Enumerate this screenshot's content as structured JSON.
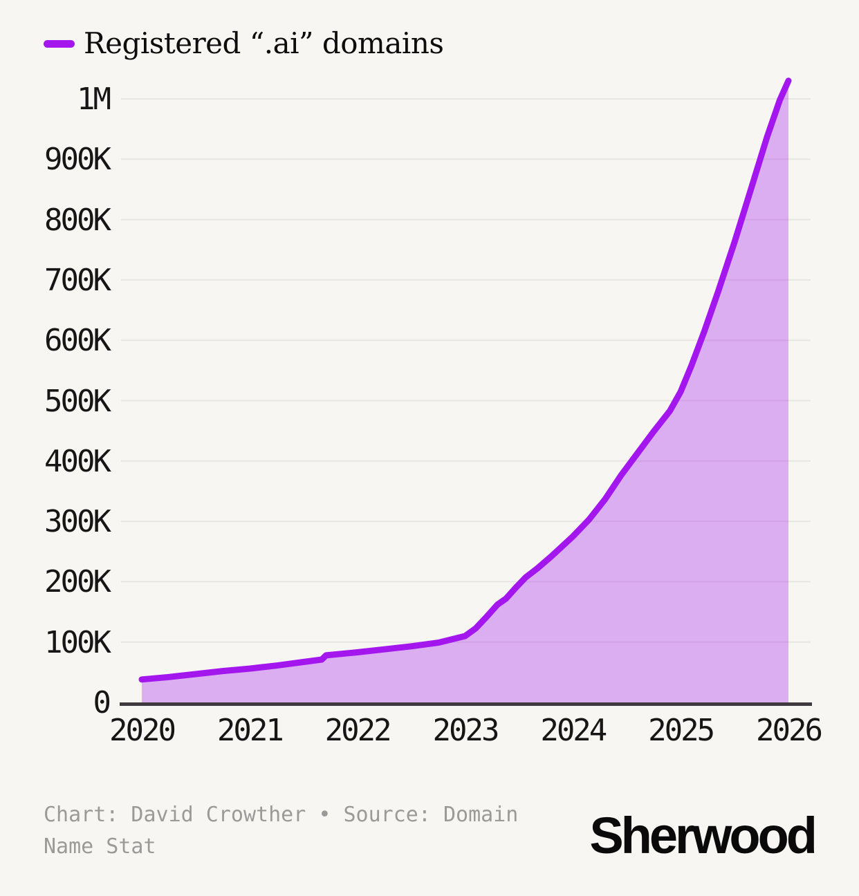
{
  "legend": {
    "swatch_color": "#a317ee"
  },
  "chart_data": {
    "type": "area",
    "title": "Registered “.ai” domains",
    "legend_label": "Registered “.ai” domains",
    "legend_position": "top-left",
    "grid": true,
    "xlabel": "",
    "ylabel": "",
    "xlim": [
      2020,
      2026.2
    ],
    "ylim": [
      0,
      1030000
    ],
    "x_ticks": [
      {
        "label": "2020",
        "value": 2020
      },
      {
        "label": "2021",
        "value": 2021
      },
      {
        "label": "2022",
        "value": 2022
      },
      {
        "label": "2023",
        "value": 2023
      },
      {
        "label": "2024",
        "value": 2024
      },
      {
        "label": "2025",
        "value": 2025
      },
      {
        "label": "2026",
        "value": 2026
      }
    ],
    "y_ticks": [
      {
        "label": "0",
        "value": 0
      },
      {
        "label": "100K",
        "value": 100000
      },
      {
        "label": "200K",
        "value": 200000
      },
      {
        "label": "300K",
        "value": 300000
      },
      {
        "label": "400K",
        "value": 400000
      },
      {
        "label": "500K",
        "value": 500000
      },
      {
        "label": "600K",
        "value": 600000
      },
      {
        "label": "700K",
        "value": 700000
      },
      {
        "label": "800K",
        "value": 800000
      },
      {
        "label": "900K",
        "value": 900000
      },
      {
        "label": "1M",
        "value": 1000000
      }
    ],
    "series": [
      {
        "name": "Registered “.ai” domains",
        "x": [
          2020.0,
          2020.25,
          2020.5,
          2020.75,
          2021.0,
          2021.25,
          2021.5,
          2021.67,
          2021.71,
          2022.0,
          2022.25,
          2022.5,
          2022.75,
          2023.0,
          2023.1,
          2023.2,
          2023.3,
          2023.38,
          2023.47,
          2023.56,
          2023.67,
          2023.8,
          2024.0,
          2024.15,
          2024.3,
          2024.45,
          2024.6,
          2024.75,
          2024.9,
          2025.0,
          2025.1,
          2025.22,
          2025.35,
          2025.5,
          2025.65,
          2025.8,
          2025.92,
          2026.0
        ],
        "values": [
          38000,
          42000,
          47000,
          52000,
          56000,
          61000,
          67000,
          71000,
          78000,
          83000,
          88000,
          93000,
          99000,
          110000,
          123000,
          142000,
          162000,
          172000,
          190000,
          207000,
          222000,
          242000,
          275000,
          303000,
          337000,
          377000,
          413000,
          449000,
          483000,
          515000,
          558000,
          615000,
          682000,
          763000,
          849000,
          936000,
          998000,
          1030000
        ]
      }
    ],
    "line_color": "#a317ee",
    "fill_color": "rgba(163,23,238,0.33)",
    "grid_color": "#e7e6e2",
    "axis_color": "#3e3a3e",
    "tick_color": "#161616"
  },
  "footer": {
    "attribution_line1": "Chart: David Crowther • Source: Domain",
    "attribution_line2": "Name Stat",
    "logo_text": "Sherwood"
  }
}
